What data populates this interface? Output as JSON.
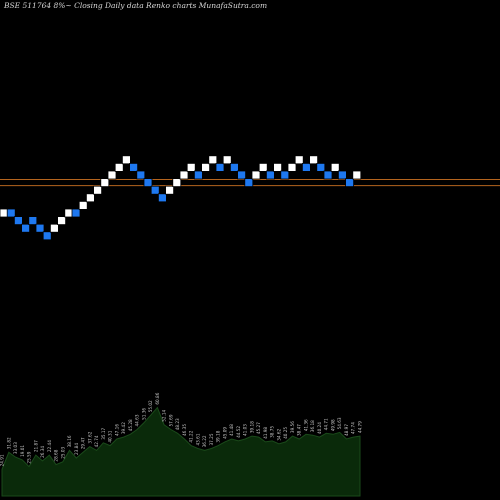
{
  "header": {
    "title": "BSE 511764  8%~  Closing Daily data  Renko  charts MunafaSutra.com"
  },
  "colors": {
    "up_brick": "#ffffff",
    "down_brick": "#1e78f0",
    "brick_border": "#000000",
    "level_line": "#b4641e",
    "volume_fill": "#0a2a0a",
    "volume_stroke": "#1a4a1a",
    "volume_label": "#c8c8c8"
  },
  "chart_data": [
    {
      "type": "renko",
      "bricks": [
        {
          "step": 0,
          "level": 0,
          "dir": "up"
        },
        {
          "step": 1,
          "level": 0,
          "dir": "down"
        },
        {
          "step": 2,
          "level": -1,
          "dir": "down"
        },
        {
          "step": 3,
          "level": -2,
          "dir": "down"
        },
        {
          "step": 4,
          "level": -1,
          "dir": "down"
        },
        {
          "step": 5,
          "level": -2,
          "dir": "down"
        },
        {
          "step": 6,
          "level": -3,
          "dir": "down"
        },
        {
          "step": 7,
          "level": -2,
          "dir": "up"
        },
        {
          "step": 8,
          "level": -1,
          "dir": "up"
        },
        {
          "step": 9,
          "level": 0,
          "dir": "up"
        },
        {
          "step": 10,
          "level": 0,
          "dir": "down"
        },
        {
          "step": 11,
          "level": 1,
          "dir": "up"
        },
        {
          "step": 12,
          "level": 2,
          "dir": "up"
        },
        {
          "step": 13,
          "level": 3,
          "dir": "up"
        },
        {
          "step": 14,
          "level": 4,
          "dir": "up"
        },
        {
          "step": 15,
          "level": 5,
          "dir": "up"
        },
        {
          "step": 16,
          "level": 6,
          "dir": "up"
        },
        {
          "step": 17,
          "level": 7,
          "dir": "up"
        },
        {
          "step": 18,
          "level": 6,
          "dir": "down"
        },
        {
          "step": 19,
          "level": 5,
          "dir": "down"
        },
        {
          "step": 20,
          "level": 4,
          "dir": "down"
        },
        {
          "step": 21,
          "level": 3,
          "dir": "down"
        },
        {
          "step": 22,
          "level": 2,
          "dir": "down"
        },
        {
          "step": 23,
          "level": 3,
          "dir": "up"
        },
        {
          "step": 24,
          "level": 4,
          "dir": "up"
        },
        {
          "step": 25,
          "level": 5,
          "dir": "up"
        },
        {
          "step": 26,
          "level": 6,
          "dir": "up"
        },
        {
          "step": 27,
          "level": 5,
          "dir": "down"
        },
        {
          "step": 28,
          "level": 6,
          "dir": "up"
        },
        {
          "step": 29,
          "level": 7,
          "dir": "up"
        },
        {
          "step": 30,
          "level": 6,
          "dir": "down"
        },
        {
          "step": 31,
          "level": 7,
          "dir": "up"
        },
        {
          "step": 32,
          "level": 6,
          "dir": "down"
        },
        {
          "step": 33,
          "level": 5,
          "dir": "down"
        },
        {
          "step": 34,
          "level": 4,
          "dir": "down"
        },
        {
          "step": 35,
          "level": 5,
          "dir": "up"
        },
        {
          "step": 36,
          "level": 6,
          "dir": "up"
        },
        {
          "step": 37,
          "level": 5,
          "dir": "down"
        },
        {
          "step": 38,
          "level": 6,
          "dir": "up"
        },
        {
          "step": 39,
          "level": 5,
          "dir": "down"
        },
        {
          "step": 40,
          "level": 6,
          "dir": "up"
        },
        {
          "step": 41,
          "level": 7,
          "dir": "up"
        },
        {
          "step": 42,
          "level": 6,
          "dir": "down"
        },
        {
          "step": 43,
          "level": 7,
          "dir": "up"
        },
        {
          "step": 44,
          "level": 6,
          "dir": "down"
        },
        {
          "step": 45,
          "level": 5,
          "dir": "down"
        },
        {
          "step": 46,
          "level": 6,
          "dir": "up"
        },
        {
          "step": 47,
          "level": 5,
          "dir": "down"
        },
        {
          "step": 48,
          "level": 4,
          "dir": "down"
        },
        {
          "step": 49,
          "level": 5,
          "dir": "up"
        }
      ],
      "reference_levels": [
        4.4,
        3.6
      ]
    },
    {
      "type": "area",
      "name": "volume",
      "values": [
        28,
        46,
        41,
        38,
        31,
        43,
        37,
        43,
        33,
        36,
        48,
        40,
        46,
        52,
        48,
        56,
        53,
        60,
        62,
        65,
        70,
        77,
        85,
        93,
        75,
        70,
        66,
        60,
        53,
        50,
        48,
        50,
        53,
        57,
        60,
        58,
        60,
        63,
        62,
        57,
        58,
        55,
        57,
        63,
        60,
        65,
        64,
        62,
        66,
        65,
        67,
        60,
        62,
        63
      ],
      "labels": [
        "24.91",
        "31.82",
        "33.03",
        "19.01",
        "25.59",
        "21.87",
        "26.34",
        "22.44",
        "28.68",
        "25.03",
        "38.16",
        "23.84",
        "29.47",
        "37.62",
        "42.74",
        "35.17",
        "40.31",
        "47.16",
        "39.42",
        "45.28",
        "44.63",
        "51.36",
        "55.02",
        "60.86",
        "52.14",
        "57.69",
        "48.23",
        "46.35",
        "41.22",
        "43.61",
        "36.22",
        "37.25",
        "39.18",
        "45.09",
        "41.48",
        "44.52",
        "41.03",
        "39.18",
        "45.27",
        "41.98",
        "38.75",
        "34.62",
        "40.25",
        "39.56",
        "38.47",
        "41.36",
        "36.18",
        "40.24",
        "44.71",
        "49.98",
        "54.63",
        "48.97",
        "47.74",
        "44.79"
      ]
    }
  ]
}
